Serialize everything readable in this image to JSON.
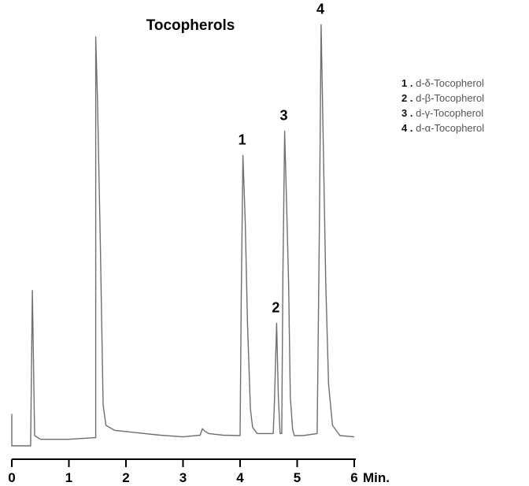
{
  "chart_data": {
    "type": "line",
    "title": "Tocopherols",
    "x_unit": "Min.",
    "xlim": [
      0,
      6
    ],
    "x_ticks": [
      "0",
      "1",
      "2",
      "3",
      "4",
      "5",
      "6"
    ],
    "grid": false,
    "legend_position": "top-right",
    "peaks": [
      {
        "label": "1",
        "x": 4.05,
        "y": 0.71
      },
      {
        "label": "2",
        "x": 4.64,
        "y": 0.3
      },
      {
        "label": "3",
        "x": 4.78,
        "y": 0.77
      },
      {
        "label": "4",
        "x": 5.42,
        "y": 1.03
      }
    ],
    "legend": [
      {
        "num": "1",
        "sep": ".",
        "name": "d-δ-Tocopherol"
      },
      {
        "num": "2",
        "sep": ".",
        "name": "d-β-Tocopherol"
      },
      {
        "num": "3",
        "sep": ".",
        "name": "d-γ-Tocopherol"
      },
      {
        "num": "4",
        "sep": ".",
        "name": "d-α-Tocopherol"
      }
    ],
    "series": [
      {
        "x": [
          0.0,
          0.0,
          0.0,
          0.33,
          0.33,
          0.36,
          0.4,
          0.5,
          1.0,
          1.47,
          1.47,
          1.5,
          1.55,
          1.6,
          1.65,
          1.8,
          2.2,
          2.6,
          3.0,
          3.3,
          3.34,
          3.38,
          3.45,
          3.7,
          4.0,
          4.02,
          4.05,
          4.09,
          4.13,
          4.18,
          4.22,
          4.3,
          4.45,
          4.58,
          4.6,
          4.64,
          4.67,
          4.7,
          4.73,
          4.75,
          4.78,
          4.81,
          4.85,
          4.88,
          4.92,
          4.95,
          5.1,
          5.35,
          5.39,
          5.42,
          5.45,
          5.5,
          5.55,
          5.62,
          5.75,
          6.0
        ],
        "y": [
          0.078,
          0.04,
          0.0,
          0.0,
          0.0,
          0.38,
          0.025,
          0.016,
          0.016,
          0.02,
          1.0,
          0.85,
          0.5,
          0.1,
          0.05,
          0.038,
          0.032,
          0.026,
          0.022,
          0.026,
          0.042,
          0.036,
          0.03,
          0.026,
          0.025,
          0.35,
          0.71,
          0.55,
          0.3,
          0.09,
          0.045,
          0.03,
          0.03,
          0.03,
          0.1,
          0.3,
          0.12,
          0.03,
          0.03,
          0.42,
          0.77,
          0.62,
          0.4,
          0.12,
          0.04,
          0.025,
          0.025,
          0.03,
          0.55,
          1.03,
          0.8,
          0.4,
          0.15,
          0.05,
          0.025,
          0.022
        ]
      }
    ]
  }
}
